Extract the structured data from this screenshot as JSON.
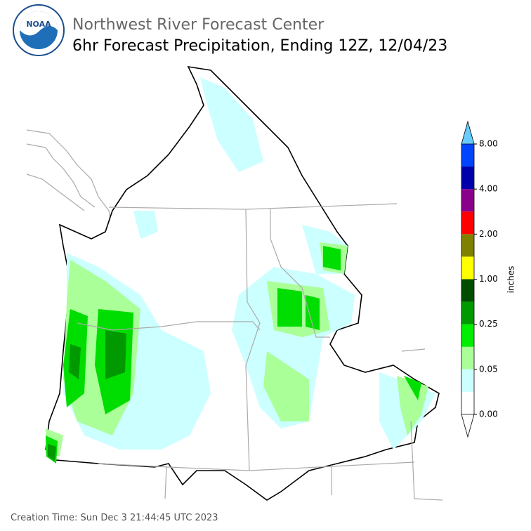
{
  "header": {
    "agency": "NOAA",
    "title": "Northwest River Forecast Center",
    "subtitle": "6hr Forecast Precipitation, Ending 12Z, 12/04/23"
  },
  "colorbar": {
    "label": "inches",
    "ticks": [
      {
        "value": 0,
        "label": "0.00"
      },
      {
        "value": 0.05,
        "label": "0.05"
      },
      {
        "value": 0.25,
        "label": "0.25"
      },
      {
        "value": 1,
        "label": "1.00"
      },
      {
        "value": 2,
        "label": "2.00"
      },
      {
        "value": 4,
        "label": "4.00"
      },
      {
        "value": 8,
        "label": "8.00"
      }
    ],
    "colors": [
      "#ffffff",
      "#ccffff",
      "#aaff99",
      "#00ee00",
      "#009900",
      "#004d00",
      "#ffff00",
      "#808000",
      "#ff0000",
      "#8b008b",
      "#0000aa",
      "#0044ff"
    ],
    "under_color": "#ffffff",
    "over_color": "#66ccff"
  },
  "footer": {
    "creation_time": "Creation Time: Sun Dec 3 21:44:45 UTC 2023"
  }
}
